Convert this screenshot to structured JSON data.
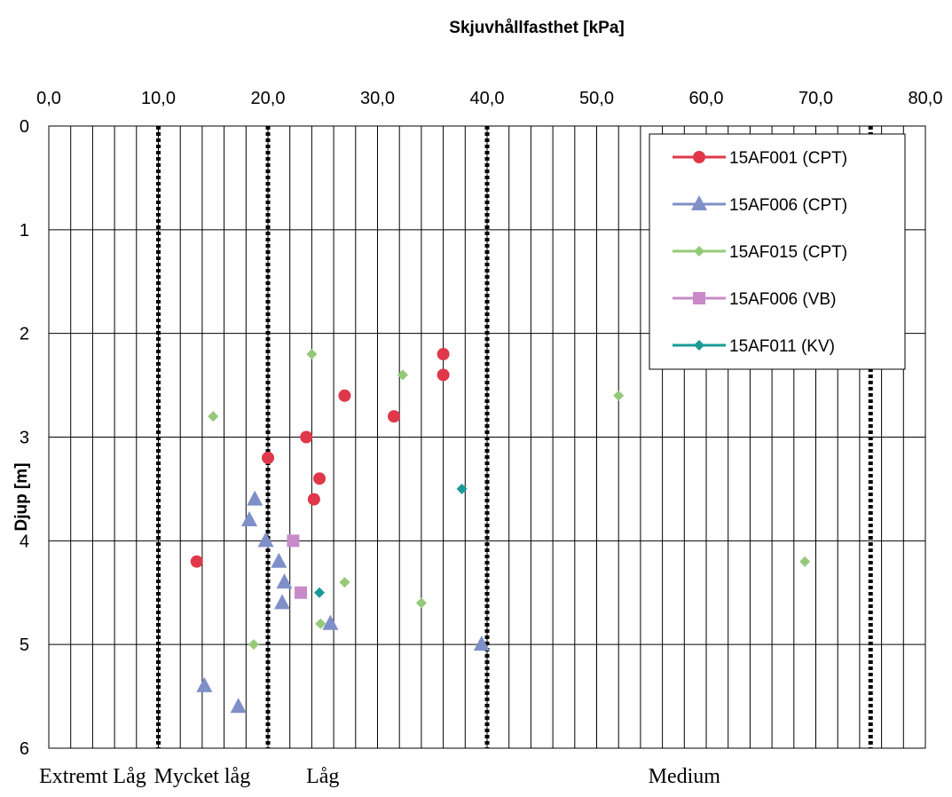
{
  "chart_data": {
    "type": "scatter",
    "title": "Skjuvhållfasthet [kPa]",
    "xlabel": "",
    "ylabel": "Djup [m]",
    "xlim": [
      0,
      80
    ],
    "ylim": [
      0,
      6
    ],
    "y_inverted": true,
    "x_axis_position": "top",
    "x_ticks": [
      "0,0",
      "10,0",
      "20,0",
      "30,0",
      "40,0",
      "50,0",
      "60,0",
      "70,0",
      "80,0"
    ],
    "y_ticks": [
      "0",
      "1",
      "2",
      "3",
      "4",
      "5",
      "6"
    ],
    "grid": true,
    "legend_position": "top-right",
    "threshold_lines": [
      10,
      20,
      40,
      75
    ],
    "zone_labels": [
      {
        "text": "Extremt Låg",
        "x": 4
      },
      {
        "text": "Mycket låg",
        "x": 14
      },
      {
        "text": "Låg",
        "x": 25
      },
      {
        "text": "Medium",
        "x": 58
      }
    ],
    "series": [
      {
        "name": "15AF001 (CPT)",
        "color": "#e0384a",
        "marker": "circle",
        "points": [
          [
            36,
            2.2
          ],
          [
            36,
            2.4
          ],
          [
            27,
            2.6
          ],
          [
            31.5,
            2.8
          ],
          [
            23.5,
            3.0
          ],
          [
            20,
            3.2
          ],
          [
            24.7,
            3.4
          ],
          [
            24.2,
            3.6
          ],
          [
            13.5,
            4.2
          ]
        ]
      },
      {
        "name": "15AF006 (CPT)",
        "color": "#7f8fc8",
        "marker": "triangle",
        "points": [
          [
            18.8,
            3.6
          ],
          [
            18.3,
            3.8
          ],
          [
            19.8,
            4.0
          ],
          [
            21,
            4.2
          ],
          [
            21.5,
            4.4
          ],
          [
            21.3,
            4.6
          ],
          [
            25.7,
            4.8
          ],
          [
            39.5,
            5.0
          ],
          [
            14.2,
            5.4
          ],
          [
            17.3,
            5.6
          ]
        ]
      },
      {
        "name": "15AF015 (CPT)",
        "color": "#95c97a",
        "marker": "diamond",
        "points": [
          [
            24,
            2.2
          ],
          [
            32.3,
            2.4
          ],
          [
            52,
            2.6
          ],
          [
            15,
            2.8
          ],
          [
            69,
            4.2
          ],
          [
            27,
            4.4
          ],
          [
            34,
            4.6
          ],
          [
            24.8,
            4.8
          ],
          [
            18.7,
            5.0
          ]
        ]
      },
      {
        "name": "15AF006 (VB)",
        "color": "#c98ac9",
        "marker": "square",
        "points": [
          [
            22.3,
            4.0
          ],
          [
            23,
            4.5
          ]
        ]
      },
      {
        "name": "15AF011 (KV)",
        "color": "#1a9a96",
        "marker": "diamond",
        "points": [
          [
            37.7,
            3.5
          ],
          [
            24.7,
            4.5
          ]
        ]
      }
    ]
  }
}
